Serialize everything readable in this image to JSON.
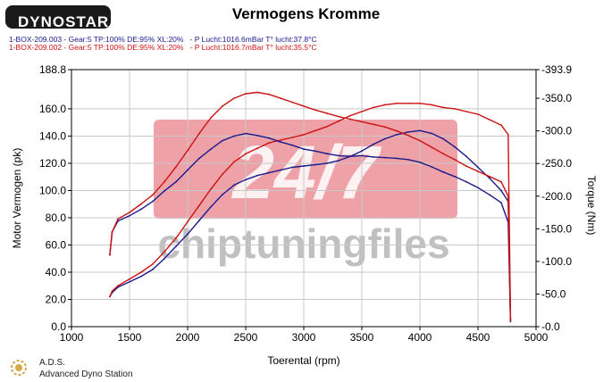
{
  "header": {
    "logo": "DYNOSTAR",
    "title": "Vermogens Kromme",
    "runs": [
      "1-BOX-209.003 - Gear:5 TP:100% DE:95% XL:20%   - P Lucht:1016.6mBar T° lucht:37.8°C",
      "1-BOX-209.002 - Gear:5 TP:100% DE:95% XL:20%   - P Lucht:1016.7mBar T° lucht:35.5°C"
    ]
  },
  "footer": {
    "brand": "A.D.S.",
    "subtitle": "Advanced Dyno Station"
  },
  "watermark": {
    "big": "24/7",
    "small": "chiptuningfiles"
  },
  "colors": {
    "run1": "#1a1a8c",
    "run2": "#cc1111",
    "watermark_red": "#e05560",
    "watermark_gray": "#8c8c8c"
  },
  "chart_data": {
    "type": "line",
    "title": "Vermogens Kromme",
    "xlabel": "Toerental (rpm)",
    "ylabel": "Motor Vermogen (pk)",
    "ylabel_right": "Torque (Nm)",
    "xlim": [
      1000,
      5000
    ],
    "ylim": [
      0,
      188.8
    ],
    "ylim_right": [
      0,
      393.9
    ],
    "x_ticks": [
      "1000",
      "1500",
      "2000",
      "2500",
      "3000",
      "3500",
      "4000",
      "4500",
      "5000"
    ],
    "y_ticks": [
      "0.0",
      "20.0",
      "40.0",
      "60.0",
      "80.0",
      "100.0",
      "120.0",
      "140.0",
      "160.0",
      "188.8"
    ],
    "y_ticks_right": [
      "-0.0",
      "-50.0",
      "-100.0",
      "-150.0",
      "-200.0",
      "-250.0",
      "-300.0",
      "-350.0",
      "-393.9"
    ],
    "grid": true,
    "series": [
      {
        "name": "1-BOX-209.003 Power",
        "axis": "left",
        "x": [
          1330,
          1350,
          1400,
          1500,
          1600,
          1700,
          1800,
          1900,
          2000,
          2100,
          2200,
          2300,
          2400,
          2500,
          2600,
          2700,
          2800,
          2900,
          3000,
          3100,
          3200,
          3300,
          3400,
          3500,
          3600,
          3700,
          3800,
          3900,
          4000,
          4100,
          4200,
          4300,
          4400,
          4500,
          4600,
          4700,
          4760,
          4780
        ],
        "values": [
          22,
          25,
          29,
          33,
          37,
          42,
          50,
          59,
          68,
          78,
          88,
          97,
          104,
          108,
          111,
          113,
          115,
          117,
          118,
          119,
          120,
          122,
          125,
          129,
          134,
          138,
          141,
          143,
          144,
          142,
          138,
          132,
          125,
          117,
          109,
          100,
          92,
          5
        ]
      },
      {
        "name": "1-BOX-209.002 Power",
        "axis": "left",
        "x": [
          1330,
          1350,
          1400,
          1500,
          1600,
          1700,
          1800,
          1900,
          2000,
          2100,
          2200,
          2300,
          2400,
          2500,
          2600,
          2700,
          2800,
          2900,
          3000,
          3100,
          3200,
          3300,
          3400,
          3500,
          3600,
          3700,
          3800,
          3900,
          4000,
          4100,
          4200,
          4300,
          4400,
          4500,
          4600,
          4700,
          4760,
          4780
        ],
        "values": [
          22,
          26,
          30,
          35,
          40,
          46,
          55,
          65,
          77,
          89,
          101,
          112,
          121,
          127,
          131,
          135,
          137,
          139,
          141,
          144,
          147,
          151,
          155,
          158,
          161,
          163,
          164,
          164,
          164,
          163,
          161,
          160,
          158,
          156,
          152,
          148,
          141,
          6
        ]
      },
      {
        "name": "1-BOX-209.003 Torque",
        "axis": "right",
        "x": [
          1330,
          1350,
          1400,
          1500,
          1600,
          1700,
          1800,
          1900,
          2000,
          2100,
          2200,
          2300,
          2400,
          2500,
          2600,
          2700,
          2800,
          2900,
          3000,
          3100,
          3200,
          3300,
          3400,
          3500,
          3600,
          3700,
          3800,
          3900,
          4000,
          4100,
          4200,
          4300,
          4400,
          4500,
          4600,
          4700,
          4760,
          4780
        ],
        "values": [
          110,
          145,
          162,
          170,
          180,
          192,
          208,
          222,
          240,
          258,
          272,
          285,
          292,
          296,
          293,
          289,
          283,
          278,
          272,
          269,
          265,
          262,
          261,
          262,
          260,
          259,
          258,
          256,
          252,
          245,
          237,
          230,
          222,
          213,
          202,
          190,
          160,
          8
        ]
      },
      {
        "name": "1-BOX-209.002 Torque",
        "axis": "right",
        "x": [
          1330,
          1350,
          1400,
          1500,
          1600,
          1700,
          1800,
          1900,
          2000,
          2100,
          2200,
          2300,
          2400,
          2500,
          2600,
          2700,
          2800,
          2900,
          3000,
          3100,
          3200,
          3300,
          3400,
          3500,
          3600,
          3700,
          3800,
          3900,
          4000,
          4100,
          4200,
          4300,
          4400,
          4500,
          4600,
          4700,
          4760,
          4780
        ],
        "values": [
          110,
          145,
          165,
          175,
          188,
          202,
          222,
          245,
          270,
          296,
          320,
          338,
          350,
          357,
          359,
          356,
          350,
          344,
          338,
          332,
          327,
          322,
          318,
          314,
          310,
          306,
          300,
          293,
          285,
          275,
          265,
          256,
          246,
          238,
          230,
          222,
          200,
          10
        ]
      }
    ]
  }
}
